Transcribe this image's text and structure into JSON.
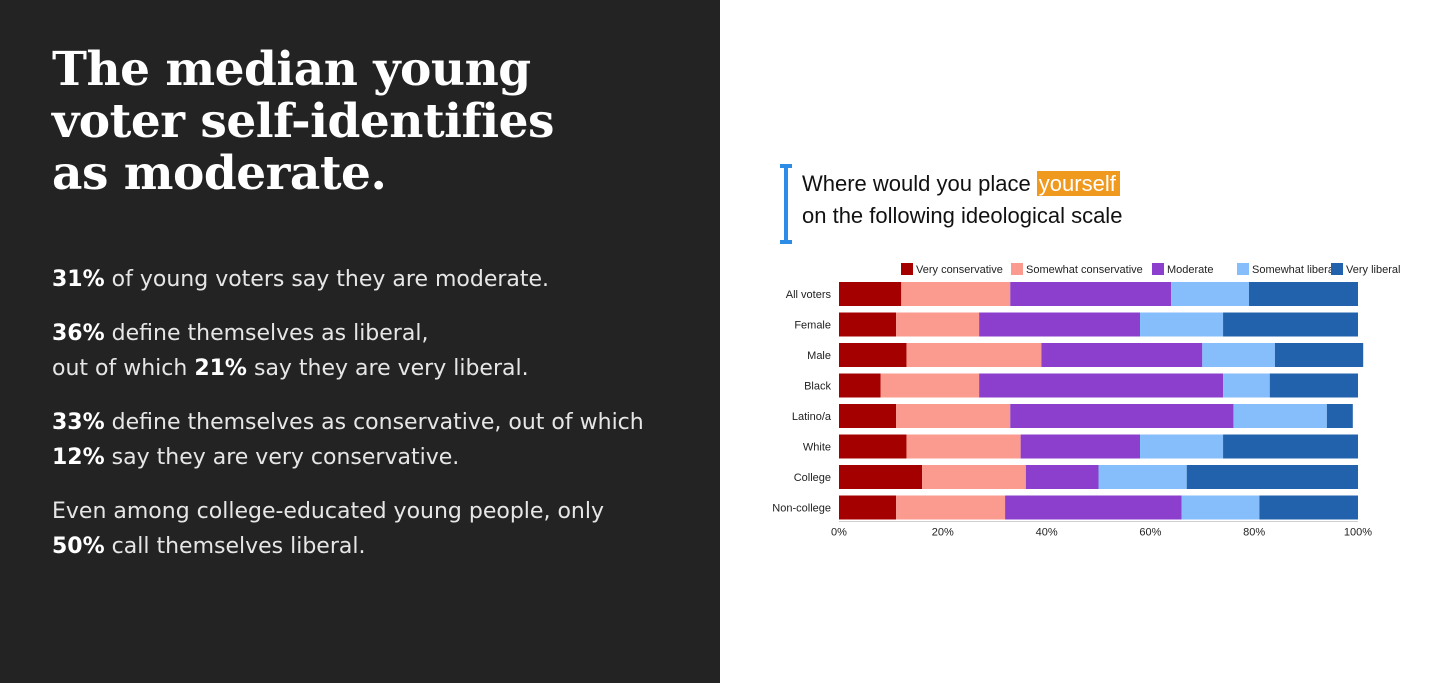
{
  "headline": [
    "The median young",
    "voter self-identifies",
    "as moderate."
  ],
  "paragraphs": [
    {
      "lines": [
        [
          {
            "t": "31%",
            "b": true
          },
          {
            "t": " of young voters say they are moderate.",
            "b": false
          }
        ]
      ]
    },
    {
      "lines": [
        [
          {
            "t": "36%",
            "b": true
          },
          {
            "t": " define themselves as liberal,",
            "b": false
          }
        ],
        [
          {
            "t": "out of which ",
            "b": false
          },
          {
            "t": "21%",
            "b": true
          },
          {
            "t": " say they are very liberal.",
            "b": false
          }
        ]
      ]
    },
    {
      "lines": [
        [
          {
            "t": "33%",
            "b": true
          },
          {
            "t": " define themselves as conservative, out of which",
            "b": false
          }
        ],
        [
          {
            "t": "12%",
            "b": true
          },
          {
            "t": " say they are very conservative.",
            "b": false
          }
        ]
      ]
    },
    {
      "lines": [
        [
          {
            "t": "Even among college-educated young people, only",
            "b": false
          }
        ],
        [
          {
            "t": "50%",
            "b": true
          },
          {
            "t": " call themselves liberal.",
            "b": false
          }
        ]
      ]
    }
  ],
  "question": {
    "line1_pre": "Where would you place ",
    "line1_highlight": "yourself",
    "line2": "on the following ideological scale"
  },
  "colors": {
    "highlight": "#f0991f",
    "accent_bracket": "#2d8ce6"
  },
  "chart_data": {
    "type": "bar",
    "orientation": "horizontal",
    "stacked": true,
    "categories": [
      "All voters",
      "Female",
      "Male",
      "Black",
      "Latino/a",
      "White",
      "College",
      "Non-college"
    ],
    "series": [
      {
        "name": "Very conservative",
        "color": "#a50000",
        "values": [
          12,
          11,
          13,
          8,
          11,
          13,
          16,
          11
        ]
      },
      {
        "name": "Somewhat conservative",
        "color": "#fb9a8e",
        "values": [
          21,
          16,
          26,
          19,
          22,
          22,
          20,
          21
        ]
      },
      {
        "name": "Moderate",
        "color": "#8b3fcc",
        "values": [
          31,
          31,
          31,
          47,
          43,
          23,
          14,
          34
        ]
      },
      {
        "name": "Somewhat liberal",
        "color": "#85befa",
        "values": [
          15,
          16,
          14,
          9,
          18,
          16,
          17,
          15
        ]
      },
      {
        "name": "Very liberal",
        "color": "#2262ac",
        "values": [
          21,
          26,
          17,
          17,
          5,
          26,
          33,
          19
        ]
      }
    ],
    "xlim": [
      0,
      100
    ],
    "xticks": [
      "0%",
      "20%",
      "40%",
      "60%",
      "80%",
      "100%"
    ],
    "legend_position": "top",
    "grid": false
  }
}
